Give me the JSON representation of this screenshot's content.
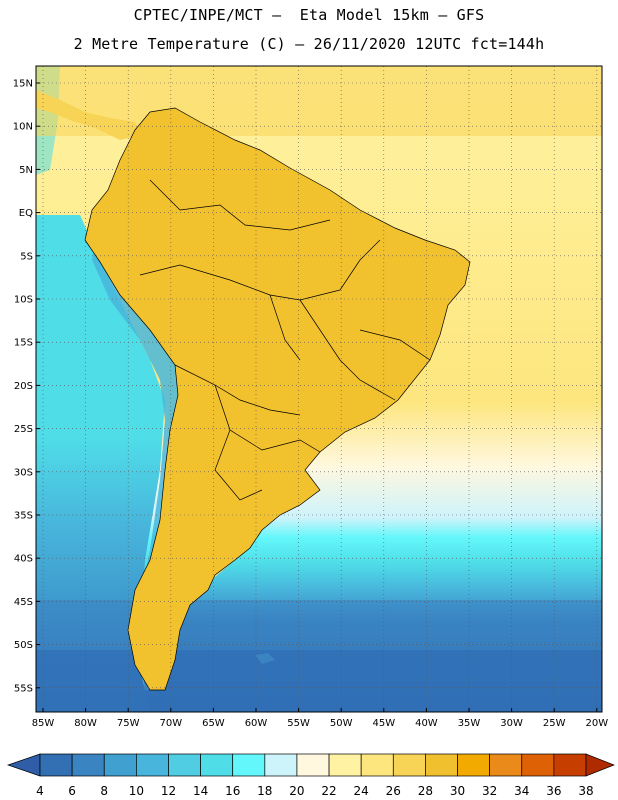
{
  "header": {
    "line1": "CPTEC/INPE/MCT –  Eta Model 15km – GFS",
    "line2": "2 Metre Temperature (C) – 26/11/2020 12UTC fct=144h"
  },
  "map": {
    "lat_labels": [
      "15N",
      "10N",
      "5N",
      "EQ",
      "5S",
      "10S",
      "15S",
      "20S",
      "25S",
      "30S",
      "35S",
      "40S",
      "45S",
      "50S",
      "55S"
    ],
    "lon_labels": [
      "85W",
      "80W",
      "75W",
      "70W",
      "65W",
      "60W",
      "55W",
      "50W",
      "45W",
      "40W",
      "35W",
      "30W",
      "25W",
      "20W"
    ],
    "grid": "dotted",
    "ocean_gradient_note": "",
    "colors": {
      "c4_6": "#2f6db5",
      "c6_8": "#3a82c2",
      "c8_10": "#42a3d0",
      "c10_12": "#4cb8dc",
      "c12_14": "#52cde3",
      "c14_16": "#4fdde8",
      "c16_18": "#63f7fb",
      "c18_20": "#cdf3fb",
      "c20_22": "#fff8df",
      "c22_24": "#fff3a3",
      "c24_26": "#fde67e",
      "c26_28": "#f7d456",
      "c28_30": "#f2c12e",
      "c30_32": "#f2aa00",
      "c32_34": "#ea8a1a",
      "c34_36": "#de6205",
      "c36_38": "#c63e00",
      "c_below4": "#2b5ba6",
      "c_above38": "#b02a00"
    }
  },
  "colorbar": {
    "labels": [
      "4",
      "6",
      "8",
      "10",
      "12",
      "14",
      "16",
      "18",
      "20",
      "22",
      "24",
      "26",
      "28",
      "30",
      "32",
      "34",
      "36",
      "38"
    ],
    "colors": [
      "#3270b3",
      "#3a84c2",
      "#40a0d0",
      "#48b6dc",
      "#50cde2",
      "#4fdde8",
      "#63f7fb",
      "#cdf3fb",
      "#fff8df",
      "#fff3a3",
      "#fde67e",
      "#f7d456",
      "#f0c02e",
      "#f2aa00",
      "#ea8a1a",
      "#de6205",
      "#c63e00"
    ],
    "left_arrow_color": "#2f5da8",
    "right_arrow_color": "#b02a00"
  }
}
